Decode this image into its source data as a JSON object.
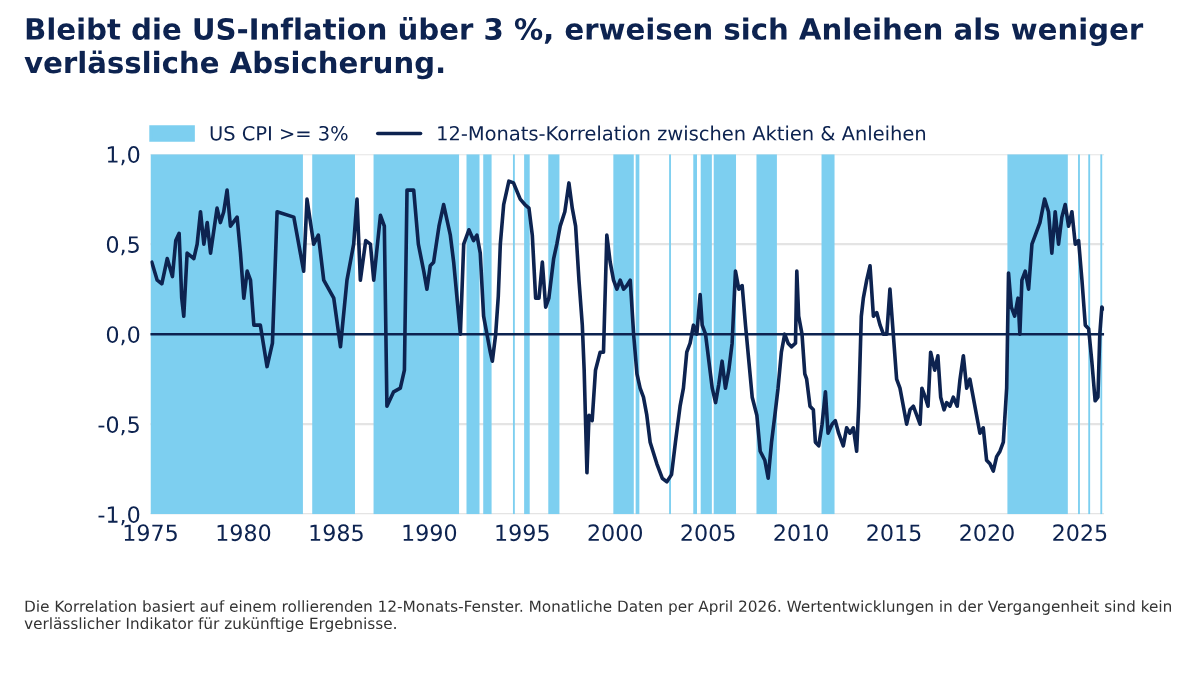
{
  "chart_data": {
    "type": "line",
    "title": "Bleibt die US-Inflation über 3 %, erweisen sich Anleihen als weniger verlässliche Absicherung.",
    "annotations": [
      "Die Korrelation basiert auf einem rollierenden 12-Monats-Fenster. Monatliche Daten per April 2026. Wertentwicklungen in der Vergangenheit sind kein verlässlicher Indikator für zukünftige Ergebnisse."
    ],
    "xlim": [
      1975,
      2026.3
    ],
    "xticks": [
      1975,
      1980,
      1985,
      1990,
      1995,
      2000,
      2005,
      2010,
      2015,
      2020,
      2025
    ],
    "ylim": [
      -1,
      1
    ],
    "yticks": [
      {
        "value": -1,
        "label": "-1,0"
      },
      {
        "value": -0.5,
        "label": "-0,5"
      },
      {
        "value": 0,
        "label": "0,0"
      },
      {
        "value": 0.5,
        "label": "0,5"
      },
      {
        "value": 1,
        "label": "1,0"
      }
    ],
    "grid": "y",
    "legend": "top left",
    "line_style": "solid",
    "marker": "none",
    "ref_lines": [
      {
        "axis": "y",
        "value": 0,
        "color": "#0d2350"
      }
    ],
    "bands": [
      {
        "axis": "x",
        "from": 1975.0,
        "to": 1983.2,
        "label": "US CPI >= 3%",
        "color": "#7dcff0"
      },
      {
        "axis": "x",
        "from": 1983.7,
        "to": 1986.0,
        "color": "#7dcff0"
      },
      {
        "axis": "x",
        "from": 1987.0,
        "to": 1991.6,
        "color": "#7dcff0"
      },
      {
        "axis": "x",
        "from": 1992.0,
        "to": 1992.7,
        "color": "#7dcff0"
      },
      {
        "axis": "x",
        "from": 1992.9,
        "to": 1993.35,
        "color": "#7dcff0"
      },
      {
        "axis": "x",
        "from": 1994.5,
        "to": 1994.6,
        "color": "#7dcff0"
      },
      {
        "axis": "x",
        "from": 1995.1,
        "to": 1995.4,
        "color": "#7dcff0"
      },
      {
        "axis": "x",
        "from": 1996.4,
        "to": 1997.0,
        "color": "#7dcff0"
      },
      {
        "axis": "x",
        "from": 1999.9,
        "to": 2001.0,
        "color": "#7dcff0"
      },
      {
        "axis": "x",
        "from": 2001.1,
        "to": 2001.3,
        "color": "#7dcff0"
      },
      {
        "axis": "x",
        "from": 2002.9,
        "to": 2003.0,
        "color": "#7dcff0"
      },
      {
        "axis": "x",
        "from": 2004.2,
        "to": 2004.4,
        "color": "#7dcff0"
      },
      {
        "axis": "x",
        "from": 2004.6,
        "to": 2005.2,
        "color": "#7dcff0"
      },
      {
        "axis": "x",
        "from": 2005.3,
        "to": 2006.5,
        "color": "#7dcff0"
      },
      {
        "axis": "x",
        "from": 2007.6,
        "to": 2008.7,
        "color": "#7dcff0"
      },
      {
        "axis": "x",
        "from": 2011.1,
        "to": 2011.8,
        "color": "#7dcff0"
      },
      {
        "axis": "x",
        "from": 2021.1,
        "to": 2024.35,
        "color": "#7dcff0"
      },
      {
        "axis": "x",
        "from": 2024.9,
        "to": 2025.0,
        "color": "#7dcff0"
      },
      {
        "axis": "x",
        "from": 2025.45,
        "to": 2025.55,
        "color": "#7dcff0"
      },
      {
        "axis": "x",
        "from": 2026.1,
        "to": 2026.2,
        "color": "#7dcff0"
      }
    ],
    "series": [
      {
        "name": "12-Monats-Korrelation zwischen Aktien & Anleihen",
        "color": "#0d2350",
        "x": [
          1975.07,
          1975.36,
          1975.61,
          1975.9,
          1976.18,
          1976.36,
          1976.54,
          1976.68,
          1976.79,
          1976.97,
          1977.33,
          1977.51,
          1977.69,
          1977.87,
          1978.05,
          1978.23,
          1978.58,
          1978.76,
          1978.94,
          1979.12,
          1979.3,
          1979.66,
          1979.84,
          1980.02,
          1980.2,
          1980.38,
          1980.56,
          1980.91,
          1981.27,
          1981.56,
          1981.81,
          1982.71,
          1983.24,
          1983.42,
          1983.78,
          1984.03,
          1984.32,
          1984.86,
          1985.22,
          1985.57,
          1985.93,
          1986.11,
          1986.29,
          1986.58,
          1986.83,
          1987.01,
          1987.37,
          1987.58,
          1987.72,
          1988.08,
          1988.44,
          1988.66,
          1988.8,
          1989.16,
          1989.41,
          1989.7,
          1989.87,
          1990.05,
          1990.23,
          1990.52,
          1990.77,
          1991.13,
          1991.31,
          1991.49,
          1991.67,
          1991.85,
          1992.13,
          1992.38,
          1992.56,
          1992.74,
          1992.92,
          1993.1,
          1993.28,
          1993.39,
          1993.57,
          1993.71,
          1993.82,
          1994.0,
          1994.28,
          1994.53,
          1994.89,
          1995.14,
          1995.36,
          1995.54,
          1995.72,
          1995.9,
          1996.08,
          1996.26,
          1996.43,
          1996.69,
          1996.86,
          1997.04,
          1997.29,
          1997.51,
          1997.69,
          1997.87,
          1998.05,
          1998.23,
          1998.33,
          1998.48,
          1998.59,
          1998.76,
          1998.94,
          1999.19,
          1999.37,
          1999.55,
          1999.73,
          1999.91,
          2000.09,
          2000.27,
          2000.45,
          2000.63,
          2000.81,
          2000.99,
          2001.17,
          2001.34,
          2001.52,
          2001.7,
          2001.88,
          2002.24,
          2002.53,
          2002.78,
          2003.03,
          2003.24,
          2003.49,
          2003.67,
          2003.85,
          2004.03,
          2004.21,
          2004.39,
          2004.57,
          2004.68,
          2004.86,
          2005.04,
          2005.22,
          2005.4,
          2005.57,
          2005.75,
          2005.93,
          2006.11,
          2006.29,
          2006.47,
          2006.65,
          2006.83,
          2007.01,
          2007.19,
          2007.37,
          2007.62,
          2007.8,
          2008.05,
          2008.23,
          2008.41,
          2008.59,
          2008.76,
          2008.94,
          2009.12,
          2009.3,
          2009.48,
          2009.7,
          2009.77,
          2009.87,
          2010.05,
          2010.2,
          2010.3,
          2010.48,
          2010.66,
          2010.77,
          2010.95,
          2011.13,
          2011.31,
          2011.45,
          2011.67,
          2011.84,
          2012.02,
          2012.27,
          2012.45,
          2012.63,
          2012.81,
          2012.99,
          2013.1,
          2013.24,
          2013.35,
          2013.53,
          2013.71,
          2013.89,
          2014.07,
          2014.25,
          2014.43,
          2014.61,
          2014.78,
          2014.96,
          2015.14,
          2015.32,
          2015.5,
          2015.68,
          2015.86,
          2016.04,
          2016.22,
          2016.4,
          2016.5,
          2016.68,
          2016.83,
          2016.97,
          2017.19,
          2017.36,
          2017.51,
          2017.69,
          2017.83,
          2018.01,
          2018.19,
          2018.4,
          2018.55,
          2018.73,
          2018.91,
          2019.08,
          2019.26,
          2019.44,
          2019.62,
          2019.8,
          2019.98,
          2020.16,
          2020.34,
          2020.52,
          2020.7,
          2020.88,
          2021.06,
          2021.16,
          2021.31,
          2021.49,
          2021.67,
          2021.77,
          2021.88,
          2022.06,
          2022.24,
          2022.42,
          2022.6,
          2022.85,
          2023.1,
          2023.31,
          2023.49,
          2023.67,
          2023.85,
          2024.03,
          2024.21,
          2024.39,
          2024.57,
          2024.75,
          2024.93,
          2025.11,
          2025.29,
          2025.47,
          2025.64,
          2025.82,
          2025.97,
          2026.07,
          2026.18,
          2026.25
        ],
        "values": [
          0.4,
          0.3,
          0.28,
          0.42,
          0.32,
          0.52,
          0.56,
          0.2,
          0.1,
          0.45,
          0.42,
          0.5,
          0.68,
          0.5,
          0.62,
          0.45,
          0.7,
          0.62,
          0.68,
          0.8,
          0.6,
          0.65,
          0.45,
          0.2,
          0.35,
          0.3,
          0.05,
          0.05,
          -0.18,
          -0.05,
          0.68,
          0.65,
          0.35,
          0.75,
          0.5,
          0.55,
          0.3,
          0.2,
          -0.07,
          0.3,
          0.5,
          0.75,
          0.3,
          0.52,
          0.5,
          0.3,
          0.66,
          0.6,
          -0.4,
          -0.32,
          -0.3,
          -0.2,
          0.8,
          0.8,
          0.5,
          0.35,
          0.25,
          0.38,
          0.4,
          0.6,
          0.72,
          0.55,
          0.4,
          0.2,
          0.0,
          0.5,
          0.58,
          0.52,
          0.55,
          0.45,
          0.1,
          0.0,
          -0.1,
          -0.15,
          0.0,
          0.21,
          0.5,
          0.72,
          0.85,
          0.84,
          0.75,
          0.72,
          0.7,
          0.55,
          0.2,
          0.2,
          0.4,
          0.15,
          0.2,
          0.42,
          0.5,
          0.6,
          0.68,
          0.84,
          0.7,
          0.6,
          0.3,
          0.05,
          -0.2,
          -0.77,
          -0.45,
          -0.48,
          -0.2,
          -0.1,
          -0.1,
          0.55,
          0.4,
          0.3,
          0.25,
          0.3,
          0.25,
          0.27,
          0.3,
          0.0,
          -0.22,
          -0.3,
          -0.35,
          -0.45,
          -0.6,
          -0.72,
          -0.8,
          -0.82,
          -0.78,
          -0.6,
          -0.4,
          -0.3,
          -0.1,
          -0.05,
          0.05,
          0.0,
          0.22,
          0.05,
          0.0,
          -0.15,
          -0.3,
          -0.38,
          -0.28,
          -0.15,
          -0.3,
          -0.2,
          -0.05,
          0.35,
          0.25,
          0.27,
          0.05,
          -0.15,
          -0.35,
          -0.45,
          -0.65,
          -0.7,
          -0.8,
          -0.6,
          -0.45,
          -0.3,
          -0.1,
          0.0,
          -0.05,
          -0.07,
          -0.05,
          0.35,
          0.1,
          0.0,
          -0.22,
          -0.25,
          -0.4,
          -0.42,
          -0.6,
          -0.62,
          -0.5,
          -0.32,
          -0.55,
          -0.5,
          -0.48,
          -0.55,
          -0.62,
          -0.52,
          -0.55,
          -0.52,
          -0.65,
          -0.4,
          0.1,
          0.2,
          0.3,
          0.38,
          0.1,
          0.12,
          0.05,
          0.0,
          0.0,
          0.25,
          0.0,
          -0.25,
          -0.3,
          -0.4,
          -0.5,
          -0.42,
          -0.4,
          -0.45,
          -0.5,
          -0.3,
          -0.35,
          -0.4,
          -0.1,
          -0.2,
          -0.12,
          -0.35,
          -0.42,
          -0.38,
          -0.4,
          -0.35,
          -0.4,
          -0.25,
          -0.12,
          -0.3,
          -0.25,
          -0.35,
          -0.45,
          -0.55,
          -0.52,
          -0.7,
          -0.72,
          -0.76,
          -0.68,
          -0.65,
          -0.6,
          -0.3,
          0.34,
          0.15,
          0.1,
          0.2,
          0.0,
          0.3,
          0.35,
          0.25,
          0.5,
          0.55,
          0.62,
          0.75,
          0.68,
          0.45,
          0.68,
          0.5,
          0.65,
          0.72,
          0.6,
          0.68,
          0.5,
          0.52,
          0.3,
          0.05,
          0.03,
          -0.15,
          -0.37,
          -0.35,
          0.0,
          0.15,
          0.14
        ]
      }
    ]
  }
}
